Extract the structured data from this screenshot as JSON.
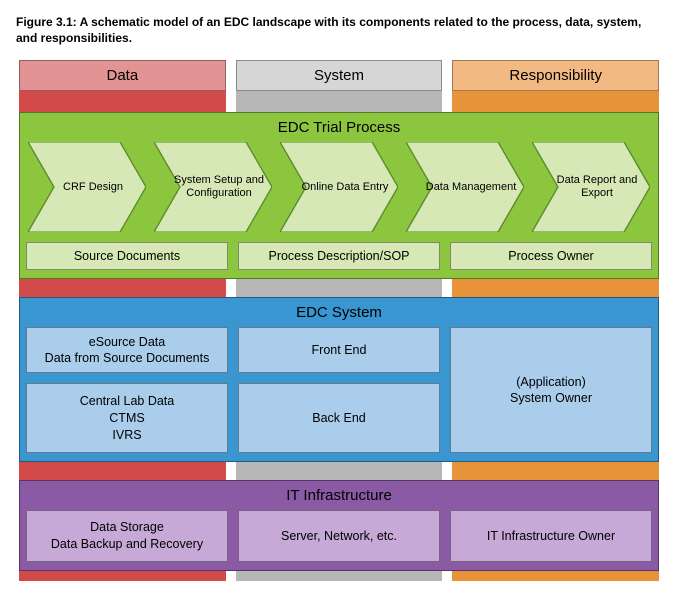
{
  "caption": "Figure 3.1: A schematic model of an EDC landscape with its components related to the process, data, system, and responsibilities.",
  "columns": {
    "labels": [
      "Data",
      "System",
      "Responsibility"
    ],
    "bg_colors": [
      "#d24a4a",
      "#b7b7b7",
      "#e7933a"
    ],
    "header_colors": [
      "#e29494",
      "#d6d6d6",
      "#f2ba82"
    ]
  },
  "layers": {
    "process": {
      "title": "EDC Trial Process",
      "bg": "#8cc63f",
      "chevron_fill": "#d6e8b5",
      "chevron_stroke": "#5a8a2a",
      "steps": [
        "CRF Design",
        "System Setup and Configuration",
        "Online Data Entry",
        "Data Management",
        "Data Report and Export"
      ],
      "row": {
        "box_bg": "#d6e8b5",
        "items": [
          "Source Documents",
          "Process Description/SOP",
          "Process Owner"
        ]
      }
    },
    "system": {
      "title": "EDC System",
      "bg": "#3a96d0",
      "box_bg": "#a9cdea",
      "left_top": "eSource Data\nData from Source Documents",
      "left_bottom": "Central Lab Data\nCTMS\nIVRS",
      "mid_top": "Front End",
      "mid_bottom": "Back End",
      "right": "(Application)\nSystem Owner"
    },
    "infra": {
      "title": "IT Infrastructure",
      "bg": "#8a5aa5",
      "box_bg": "#c6a9d6",
      "items": [
        "Data Storage\nData Backup and Recovery",
        "Server, Network, etc.",
        "IT Infrastructure Owner"
      ]
    }
  },
  "layout": {
    "diagram_width": 640,
    "col_gap": 10
  }
}
